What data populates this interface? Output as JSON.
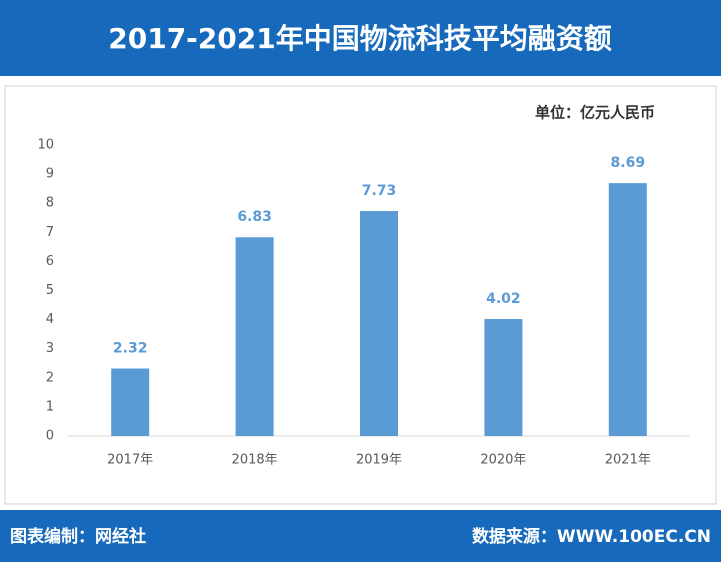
{
  "chart_data": {
    "type": "bar",
    "title": "2017-2021年中国物流科技平均融资额",
    "unit_label": "单位：亿元人民币",
    "categories": [
      "2017年",
      "2018年",
      "2019年",
      "2020年",
      "2021年"
    ],
    "values": [
      2.32,
      6.83,
      7.73,
      4.02,
      8.69
    ],
    "color": "#5b9bd5",
    "ylim": [
      0,
      10
    ],
    "yticks": [
      0,
      1,
      2,
      3,
      4,
      5,
      6,
      7,
      8,
      9,
      10
    ],
    "grid": false
  },
  "footer": {
    "left": "图表编制：网经社",
    "right": "数据来源：WWW.100EC.CN"
  }
}
